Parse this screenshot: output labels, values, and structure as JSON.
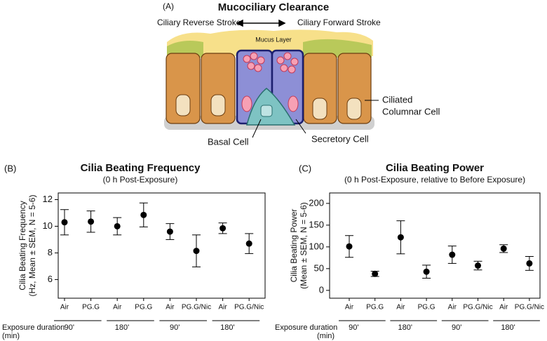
{
  "illustration": {
    "panel_label": "(A)",
    "title": "Mucociliary Clearance",
    "left_label": "Ciliary Reverse Stroke",
    "right_label": "Ciliary Forward Stroke",
    "mucus_label": "Mucus Layer",
    "columnar_label": [
      "Ciliated",
      "Columnar Cell"
    ],
    "basal_label": "Basal Cell",
    "secretory_label": "Secretory Cell"
  },
  "chart_data": [
    {
      "type": "errorbar",
      "panel_label": "(B)",
      "title": "Cilia Beating Frequency",
      "subtitle": "(0 h Post-Exposure)",
      "ylabel": [
        "Cilia Beating Frequency",
        "(Hz, Mean ± SEM, N = 5-6)"
      ],
      "xlabel": [
        "Exposure duration",
        "(min)"
      ],
      "categories": [
        "Air",
        "PG.G",
        "Air",
        "PG.G",
        "Air",
        "PG.G/Nic",
        "Air",
        "PG.G/Nic"
      ],
      "group_labels": [
        "90'",
        "180'",
        "90'",
        "180'"
      ],
      "values": [
        10.3,
        10.35,
        10.0,
        10.85,
        9.6,
        8.15,
        9.85,
        8.7
      ],
      "errors": [
        0.95,
        0.8,
        0.65,
        0.9,
        0.6,
        1.2,
        0.4,
        0.75
      ],
      "color": "#000000",
      "ylim": [
        4.6,
        12.5
      ],
      "yticks": [
        6,
        8,
        10,
        12
      ]
    },
    {
      "type": "errorbar",
      "panel_label": "(C)",
      "title": "Cilia Beating Power",
      "subtitle": "(0 h Post-Exposure, relative to Before Exposure)",
      "ylabel": [
        "Cilia Beating Power",
        "(Mean ± SEM, N = 5-6)"
      ],
      "xlabel": [
        "Exposure duration",
        "(min)"
      ],
      "categories": [
        "Air",
        "PG.G",
        "Air",
        "PG.G",
        "Air",
        "PG.G/Nic",
        "Air",
        "PG.G/Nic"
      ],
      "group_labels": [
        "90'",
        "180'",
        "90'",
        "180'"
      ],
      "values": [
        101,
        38,
        122,
        43,
        82,
        57,
        96,
        62
      ],
      "errors": [
        25,
        6,
        38,
        15,
        20,
        10,
        9,
        16
      ],
      "color": "#000000",
      "ylim": [
        -18,
        224
      ],
      "yticks": [
        0,
        50,
        100,
        150,
        200
      ]
    }
  ]
}
